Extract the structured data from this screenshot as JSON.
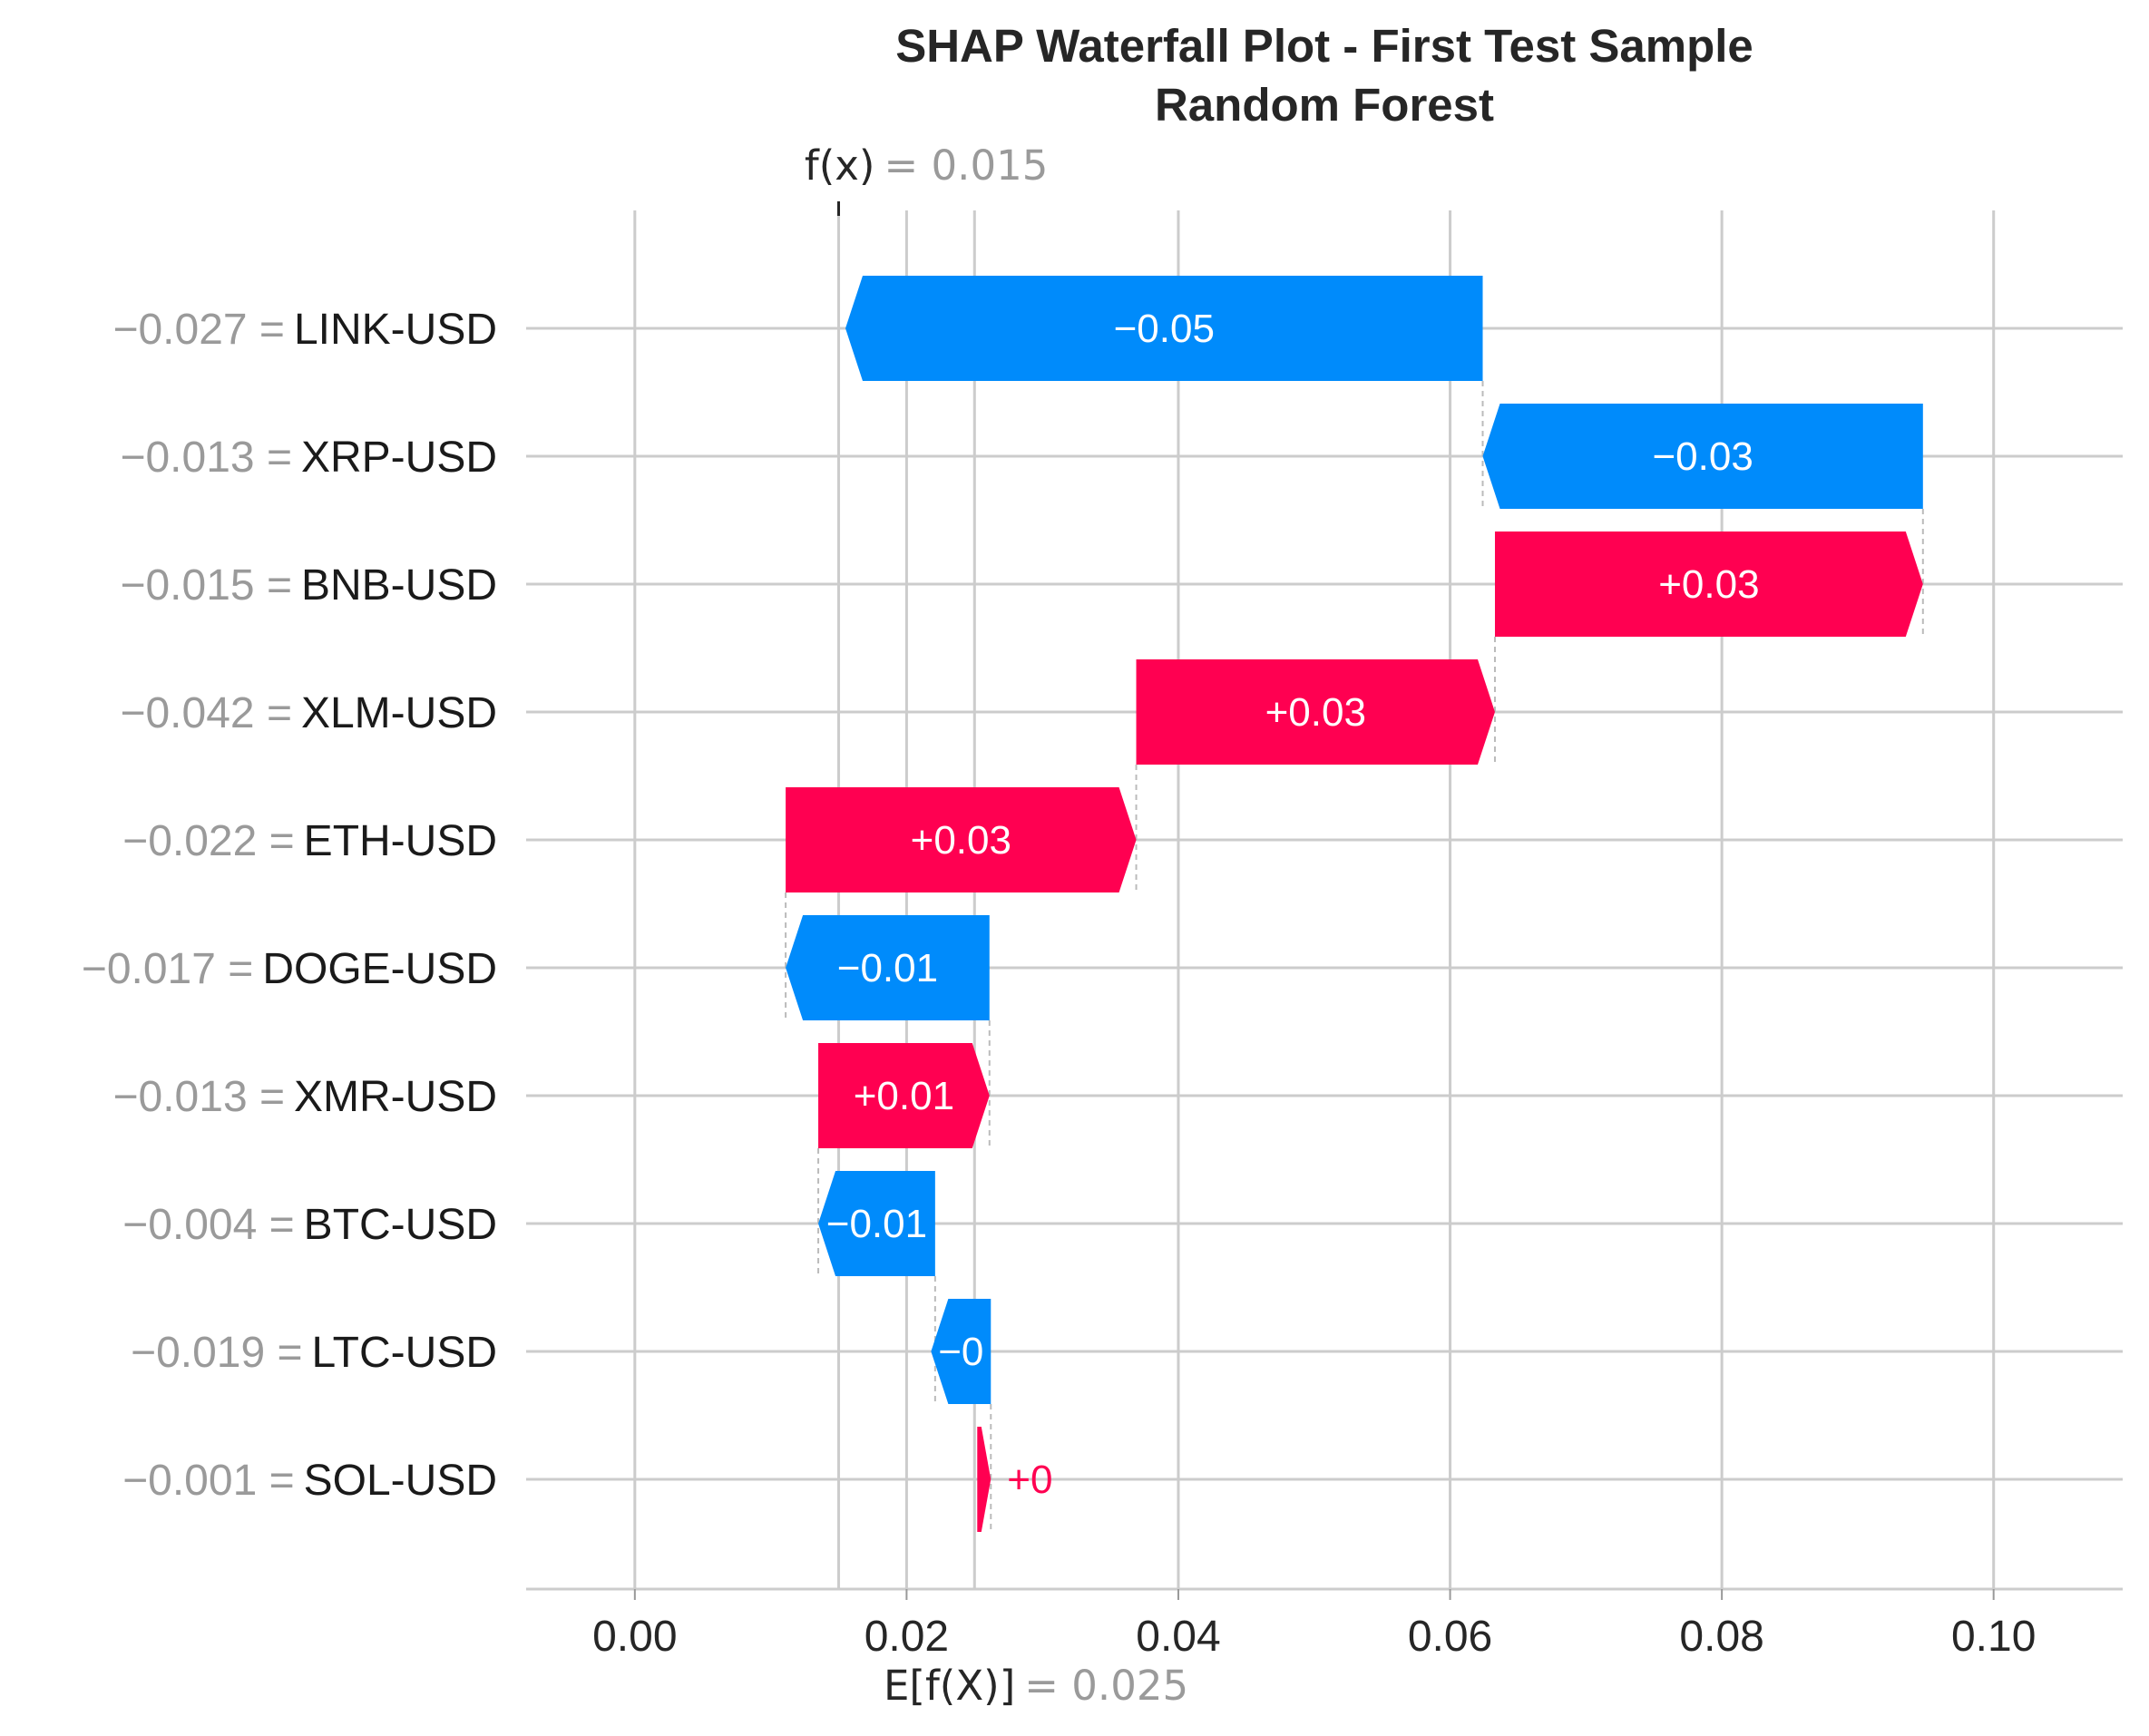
{
  "chart_data": {
    "type": "waterfall",
    "title": "SHAP Waterfall Plot - First Test Sample",
    "subtitle": "Random Forest",
    "fx_label": "f(x)",
    "fx_value": 0.015,
    "fx_value_text": "= 0.015",
    "efx_label": "E[f(X)]",
    "efx_value": 0.025,
    "efx_value_text": "= 0.025",
    "xlim": [
      -0.008,
      0.1095
    ],
    "xticks": [
      0.0,
      0.02,
      0.04,
      0.06,
      0.08,
      0.1
    ],
    "xtick_labels": [
      "0.00",
      "0.02",
      "0.04",
      "0.06",
      "0.08",
      "0.10"
    ],
    "grid": true,
    "colors": {
      "positive": "#ff0051",
      "negative": "#008bfb",
      "grid": "#cccccc",
      "connector": "#bbbbbb"
    },
    "features": [
      {
        "name": "LINK-USD",
        "feature_value": "−0.027",
        "start": 0.0624,
        "end": 0.0155,
        "label": "−0.05"
      },
      {
        "name": "XRP-USD",
        "feature_value": "−0.013",
        "start": 0.0948,
        "end": 0.0624,
        "label": "−0.03"
      },
      {
        "name": "BNB-USD",
        "feature_value": "−0.015",
        "start": 0.0633,
        "end": 0.0948,
        "label": "+0.03"
      },
      {
        "name": "XLM-USD",
        "feature_value": "−0.042",
        "start": 0.0369,
        "end": 0.0633,
        "label": "+0.03"
      },
      {
        "name": "ETH-USD",
        "feature_value": "−0.022",
        "start": 0.0111,
        "end": 0.0369,
        "label": "+0.03"
      },
      {
        "name": "DOGE-USD",
        "feature_value": "−0.017",
        "start": 0.0261,
        "end": 0.0111,
        "label": "−0.01"
      },
      {
        "name": "XMR-USD",
        "feature_value": "−0.013",
        "start": 0.0135,
        "end": 0.0261,
        "label": "+0.01"
      },
      {
        "name": "BTC-USD",
        "feature_value": "−0.004",
        "start": 0.0221,
        "end": 0.0135,
        "label": "−0.01"
      },
      {
        "name": "LTC-USD",
        "feature_value": "−0.019",
        "start": 0.0262,
        "end": 0.0218,
        "label": "−0"
      },
      {
        "name": "SOL-USD",
        "feature_value": "−0.001",
        "start": 0.0252,
        "end": 0.0262,
        "label": "+0"
      }
    ]
  }
}
